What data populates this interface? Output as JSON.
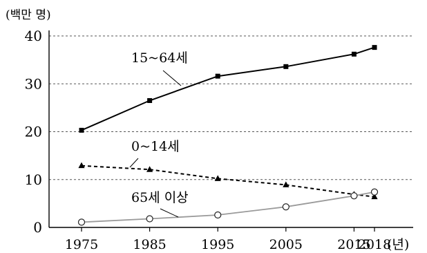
{
  "chart_data": {
    "type": "line",
    "y_unit_label": "(백만 명)",
    "x_unit_label": "(년)",
    "x": [
      1975,
      1985,
      1995,
      2005,
      2015,
      2018
    ],
    "x_tick_labels": [
      "1975",
      "1985",
      "1995",
      "2005",
      "2015",
      "2018"
    ],
    "y_ticks": [
      0,
      10,
      20,
      30,
      40
    ],
    "y_tick_labels": [
      "0",
      "10",
      "20",
      "30",
      "40"
    ],
    "xlim": [
      1975,
      2018
    ],
    "ylim": [
      0,
      40
    ],
    "grid": "horizontal-dashed",
    "series": [
      {
        "name": "15~64세",
        "values": [
          20.3,
          26.5,
          31.6,
          33.6,
          36.2,
          37.6
        ],
        "line_style": "solid",
        "marker": "square",
        "color": "#000000"
      },
      {
        "name": "0~14세",
        "values": [
          12.9,
          12.1,
          10.2,
          8.9,
          6.9,
          6.4
        ],
        "line_style": "dashed",
        "marker": "triangle",
        "color": "#000000"
      },
      {
        "name": "65세 이상",
        "values": [
          1.1,
          1.8,
          2.6,
          4.3,
          6.6,
          7.4
        ],
        "line_style": "solid",
        "marker": "open-circle",
        "color": "#9a9a9a"
      }
    ]
  }
}
